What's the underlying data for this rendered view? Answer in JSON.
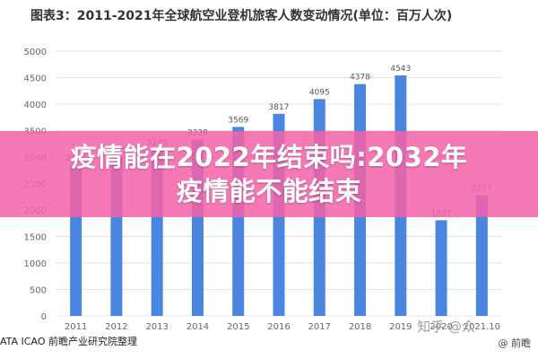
{
  "chart_data": {
    "type": "bar",
    "title": "图表3：2011-2021年全球航空业登机旅客人数变动情况(单位：百万人次)",
    "categories": [
      "2011",
      "2012",
      "2013",
      "2014",
      "2015",
      "2016",
      "2017",
      "2018",
      "2019",
      "2020",
      "2021.10"
    ],
    "values": [
      2850,
      2991,
      3145,
      3328,
      3569,
      3817,
      4095,
      4378,
      4543,
      1807,
      2277
    ],
    "data_labels": [
      "2850",
      "2991",
      "3145",
      "3328",
      "3569",
      "3817",
      "4095",
      "4378",
      "4543",
      "1807",
      "2277"
    ],
    "y_ticks": [
      0,
      500,
      1000,
      1500,
      2000,
      2500,
      3000,
      3500,
      4000,
      4500,
      5000
    ],
    "ylim": [
      0,
      5000
    ],
    "grid": true,
    "bar_color": "#4a86e0"
  },
  "overlay": {
    "line1": "疫情能在2022年结束吗:2032年",
    "line2": "疫情能不能结束"
  },
  "source": "ATA ICAO 前瞻产业研究院整理",
  "watermark": {
    "zhihu": "知乎 @众",
    "brand": "@ 前瞻"
  }
}
